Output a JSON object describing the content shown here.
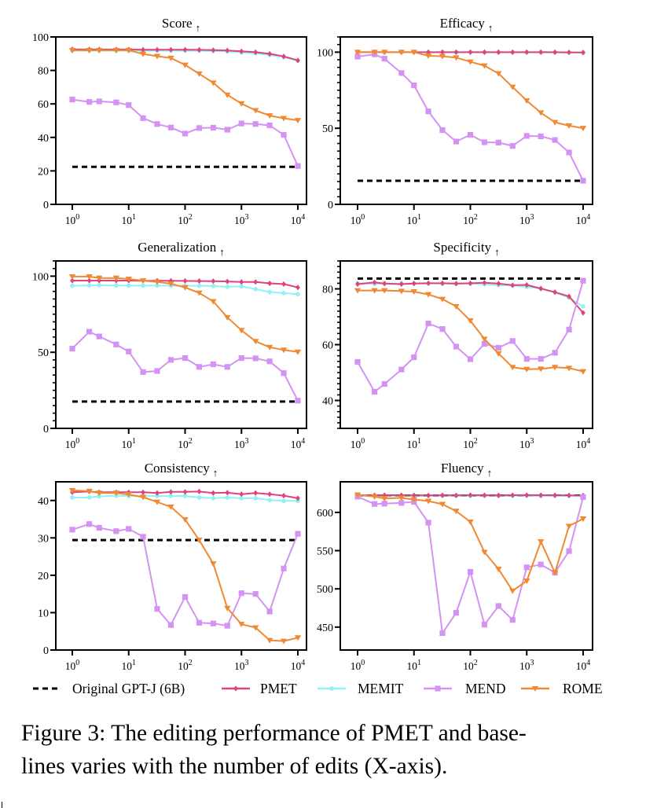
{
  "figure": {
    "caption_line1": "Figure 3: The editing performance of PMET and base-",
    "caption_line2": "lines varies with the number of edits (X-axis)."
  },
  "legend": {
    "position": "bottom",
    "entries": [
      {
        "name": "Original GPT-J (6B)",
        "color": "#000000",
        "style": "dashed",
        "marker": "none"
      },
      {
        "name": "PMET",
        "color": "#e0427c",
        "style": "solid",
        "marker": "diamond"
      },
      {
        "name": "MEMIT",
        "color": "#8ef2f6",
        "style": "solid",
        "marker": "circle"
      },
      {
        "name": "MEND",
        "color": "#d493f2",
        "style": "solid",
        "marker": "square"
      },
      {
        "name": "ROME",
        "color": "#f08a32",
        "style": "solid",
        "marker": "triangle-down"
      }
    ]
  },
  "chart_data": [
    {
      "type": "line",
      "title": "Score",
      "title_arrow": "↑",
      "xscale": "log",
      "x": [
        1,
        2,
        3,
        6,
        10,
        18,
        32,
        56,
        100,
        178,
        316,
        562,
        1000,
        1778,
        3162,
        5623,
        10000
      ],
      "xticks": [
        "10^0",
        "10^1",
        "10^2",
        "10^3",
        "10^4"
      ],
      "xlim": [
        1,
        10000
      ],
      "ylim": [
        0,
        100
      ],
      "yticks": [
        0,
        20,
        40,
        60,
        80,
        100
      ],
      "yminor": null,
      "grid": false,
      "baseline": {
        "name": "Original GPT-J (6B)",
        "value": 22.4
      },
      "series": [
        {
          "name": "PMET",
          "values": [
            92.6,
            92.5,
            92.5,
            92.5,
            92.5,
            92.4,
            92.4,
            92.4,
            92.4,
            92.3,
            92.1,
            91.9,
            91.4,
            90.9,
            89.9,
            88.4,
            86.0
          ]
        },
        {
          "name": "MEMIT",
          "values": [
            91.8,
            91.8,
            91.8,
            91.8,
            91.8,
            91.8,
            91.8,
            91.8,
            91.8,
            91.8,
            91.6,
            91.4,
            90.7,
            90.2,
            89.2,
            87.9,
            85.8
          ]
        },
        {
          "name": "MEND",
          "values": [
            62.6,
            61.2,
            61.5,
            60.9,
            59.3,
            51.5,
            48.0,
            45.9,
            42.3,
            45.6,
            45.8,
            44.6,
            48.3,
            48.0,
            47.2,
            41.5,
            22.9
          ]
        },
        {
          "name": "ROME",
          "values": [
            92.0,
            92.0,
            92.0,
            92.0,
            92.0,
            89.8,
            88.5,
            87.4,
            83.3,
            78.0,
            72.6,
            65.4,
            60.2,
            56.1,
            53.0,
            51.4,
            50.2
          ]
        }
      ]
    },
    {
      "type": "line",
      "title": "Efficacy",
      "title_arrow": "↑",
      "xscale": "log",
      "x": [
        1,
        2,
        3,
        6,
        10,
        18,
        32,
        56,
        100,
        178,
        316,
        562,
        1000,
        1778,
        3162,
        5623,
        10000
      ],
      "xticks": [
        "10^0",
        "10^1",
        "10^2",
        "10^3",
        "10^4"
      ],
      "xlim": [
        1,
        10000
      ],
      "ylim": [
        0,
        110
      ],
      "yticks": [
        0,
        50,
        100
      ],
      "yminor": 5,
      "grid": false,
      "baseline": {
        "name": "Original GPT-J (6B)",
        "value": 15.5
      },
      "series": [
        {
          "name": "PMET",
          "values": [
            100.0,
            100.0,
            100.0,
            100.0,
            100.0,
            100.0,
            100.0,
            100.0,
            100.0,
            100.0,
            100.0,
            100.0,
            100.0,
            100.0,
            100.0,
            99.9,
            99.8
          ]
        },
        {
          "name": "MEMIT",
          "values": [
            100.0,
            100.0,
            100.0,
            100.0,
            100.0,
            99.9,
            99.9,
            99.9,
            99.9,
            99.9,
            99.9,
            99.9,
            99.9,
            99.9,
            99.8,
            99.7,
            99.6
          ]
        },
        {
          "name": "MEND",
          "values": [
            97.1,
            98.6,
            95.7,
            86.3,
            78.2,
            61.1,
            48.8,
            41.3,
            45.7,
            40.8,
            40.6,
            38.4,
            45.0,
            44.7,
            42.3,
            34.1,
            15.5
          ]
        },
        {
          "name": "ROME",
          "values": [
            100.0,
            100.0,
            100.0,
            100.0,
            100.0,
            97.6,
            97.3,
            96.4,
            93.7,
            91.1,
            86.0,
            77.1,
            68.1,
            60.2,
            53.9,
            51.7,
            50.0
          ]
        }
      ]
    },
    {
      "type": "line",
      "title": "Generalization",
      "title_arrow": "↑",
      "xscale": "log",
      "x": [
        1,
        2,
        3,
        6,
        10,
        18,
        32,
        56,
        100,
        178,
        316,
        562,
        1000,
        1778,
        3162,
        5623,
        10000
      ],
      "xticks": [
        "10^0",
        "10^1",
        "10^2",
        "10^3",
        "10^4"
      ],
      "xlim": [
        1,
        10000
      ],
      "ylim": [
        0,
        110
      ],
      "yticks": [
        0,
        50,
        100
      ],
      "yminor": 5,
      "grid": false,
      "baseline": {
        "name": "Original GPT-J (6B)",
        "value": 17.6
      },
      "series": [
        {
          "name": "PMET",
          "values": [
            97.1,
            97.1,
            97.1,
            97.1,
            97.1,
            97.0,
            97.0,
            97.0,
            96.9,
            96.8,
            96.7,
            96.5,
            96.2,
            96.2,
            95.3,
            94.8,
            92.6
          ]
        },
        {
          "name": "MEMIT",
          "values": [
            93.7,
            93.9,
            94.0,
            93.9,
            93.8,
            93.8,
            93.8,
            93.8,
            93.7,
            93.7,
            93.5,
            93.0,
            93.3,
            91.5,
            89.6,
            88.9,
            88.2
          ]
        },
        {
          "name": "MEND",
          "values": [
            52.4,
            63.5,
            60.4,
            55.1,
            50.5,
            37.0,
            37.7,
            45.0,
            46.2,
            40.4,
            42.1,
            40.4,
            46.2,
            46.0,
            44.0,
            36.3,
            18.2
          ]
        },
        {
          "name": "ROME",
          "values": [
            99.7,
            99.7,
            98.8,
            98.8,
            98.1,
            97.1,
            96.2,
            95.0,
            92.6,
            89.0,
            83.4,
            72.9,
            64.4,
            57.2,
            53.3,
            51.5,
            50.2
          ]
        }
      ]
    },
    {
      "type": "line",
      "title": "Specificity",
      "title_arrow": "↑",
      "xscale": "log",
      "x": [
        1,
        2,
        3,
        6,
        10,
        18,
        32,
        56,
        100,
        178,
        316,
        562,
        1000,
        1778,
        3162,
        5623,
        10000
      ],
      "xticks": [
        "10^0",
        "10^1",
        "10^2",
        "10^3",
        "10^4"
      ],
      "xlim": [
        1,
        10000
      ],
      "ylim": [
        30,
        90
      ],
      "yticks": [
        40,
        60,
        80
      ],
      "yminor": 2,
      "grid": false,
      "baseline": {
        "name": "Original GPT-J (6B)",
        "value": 83.7
      },
      "series": [
        {
          "name": "PMET",
          "values": [
            81.7,
            82.3,
            81.9,
            81.7,
            81.9,
            82.0,
            82.0,
            81.9,
            82.0,
            82.2,
            81.9,
            81.3,
            81.4,
            80.1,
            78.8,
            77.3,
            71.4
          ]
        },
        {
          "name": "MEMIT",
          "values": [
            82.0,
            81.8,
            81.9,
            81.9,
            82.0,
            82.0,
            81.9,
            81.8,
            81.9,
            81.6,
            81.3,
            81.2,
            80.7,
            80.1,
            78.8,
            76.8,
            73.7
          ]
        },
        {
          "name": "MEND",
          "values": [
            53.8,
            43.1,
            45.9,
            51.1,
            55.5,
            67.6,
            65.6,
            59.3,
            54.8,
            60.3,
            58.9,
            61.3,
            54.9,
            54.9,
            57.1,
            65.4,
            82.9
          ]
        },
        {
          "name": "ROME",
          "values": [
            79.4,
            79.4,
            79.4,
            79.2,
            79.0,
            78.0,
            76.3,
            73.7,
            68.6,
            62.0,
            56.8,
            51.9,
            51.2,
            51.3,
            51.9,
            51.6,
            50.4
          ]
        }
      ]
    },
    {
      "type": "line",
      "title": "Consistency",
      "title_arrow": "↑",
      "xscale": "log",
      "x": [
        1,
        2,
        3,
        6,
        10,
        18,
        32,
        56,
        100,
        178,
        316,
        562,
        1000,
        1778,
        3162,
        5623,
        10000
      ],
      "xticks": [
        "10^0",
        "10^1",
        "10^2",
        "10^3",
        "10^4"
      ],
      "xlim": [
        1,
        10000
      ],
      "ylim": [
        0,
        45
      ],
      "yticks": [
        0,
        10,
        20,
        30,
        40
      ],
      "yminor": null,
      "grid": false,
      "baseline": {
        "name": "Original GPT-J (6B)",
        "value": 29.4
      },
      "series": [
        {
          "name": "PMET",
          "values": [
            42.2,
            42.4,
            42.2,
            42.2,
            42.2,
            42.2,
            42.0,
            42.3,
            42.3,
            42.4,
            42.0,
            42.1,
            41.7,
            42.0,
            41.7,
            41.3,
            40.6
          ]
        },
        {
          "name": "MEMIT",
          "values": [
            40.8,
            40.8,
            41.1,
            41.3,
            41.2,
            41.2,
            41.2,
            41.2,
            41.2,
            40.8,
            40.6,
            40.8,
            40.6,
            40.6,
            40.1,
            39.9,
            39.9
          ]
        },
        {
          "name": "MEND",
          "values": [
            32.2,
            33.7,
            32.7,
            31.8,
            32.4,
            30.3,
            11.0,
            6.7,
            14.2,
            7.3,
            7.1,
            6.5,
            15.2,
            15.0,
            10.3,
            21.8,
            31.1
          ]
        },
        {
          "name": "ROME",
          "values": [
            42.7,
            42.5,
            42.0,
            42.0,
            41.6,
            40.9,
            39.6,
            38.3,
            34.9,
            29.4,
            23.1,
            11.2,
            6.9,
            6.0,
            2.6,
            2.4,
            3.3
          ]
        }
      ]
    },
    {
      "type": "line",
      "title": "Fluency",
      "title_arrow": "↑",
      "xscale": "log",
      "x": [
        1,
        2,
        3,
        6,
        10,
        18,
        32,
        56,
        100,
        178,
        316,
        562,
        1000,
        1778,
        3162,
        5623,
        10000
      ],
      "xticks": [
        "10^0",
        "10^1",
        "10^2",
        "10^3",
        "10^4"
      ],
      "xlim": [
        1,
        10000
      ],
      "ylim": [
        420,
        640
      ],
      "yticks": [
        450,
        500,
        550,
        600
      ],
      "yminor": null,
      "grid": false,
      "baseline": {
        "name": "Original GPT-J (6B)",
        "value": 622.0
      },
      "series": [
        {
          "name": "PMET",
          "values": [
            622.5,
            622.3,
            622.6,
            622.4,
            622.3,
            622.2,
            622.4,
            622.3,
            622.5,
            622.4,
            622.3,
            622.5,
            622.6,
            622.5,
            622.4,
            622.3,
            622.0
          ]
        },
        {
          "name": "MEMIT",
          "values": [
            621.8,
            621.6,
            621.8,
            621.7,
            621.6,
            621.7,
            621.8,
            621.6,
            621.7,
            621.8,
            621.6,
            621.7,
            621.6,
            621.5,
            621.5,
            621.4,
            621.3
          ]
        },
        {
          "name": "MEND",
          "values": [
            620.6,
            611.0,
            611.4,
            612.4,
            613.8,
            586.6,
            442.2,
            468.6,
            522.3,
            453.2,
            477.6,
            459.4,
            528.1,
            531.9,
            521.2,
            549.4,
            619.9
          ]
        },
        {
          "name": "ROME",
          "values": [
            623.0,
            620.6,
            618.2,
            618.9,
            616.9,
            614.8,
            610.7,
            601.7,
            587.6,
            548.0,
            525.7,
            497.4,
            510.5,
            561.8,
            521.2,
            582.1,
            591.7
          ]
        }
      ]
    }
  ]
}
